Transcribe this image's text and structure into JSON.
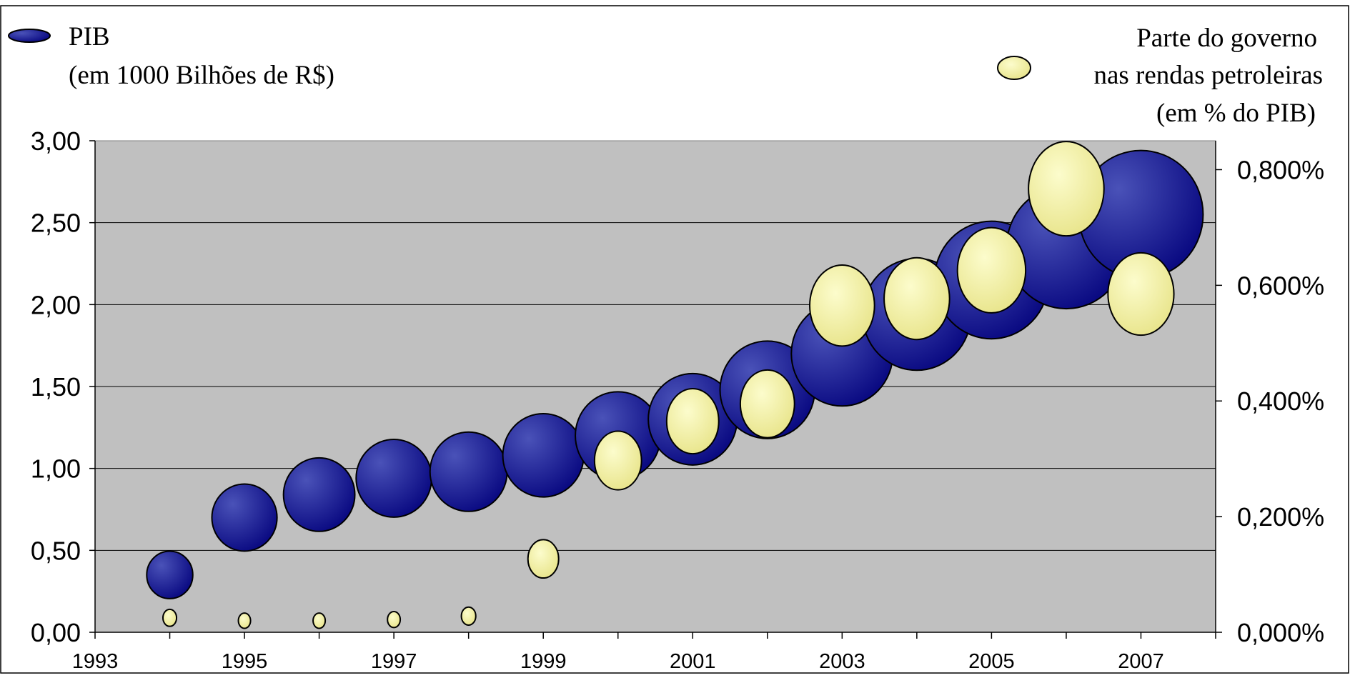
{
  "legend": {
    "left": {
      "line1": "PIB",
      "line2": "(em 1000 Bilhões de R$)"
    },
    "right": {
      "line1": "Parte do governo",
      "line2": "nas rendas petroleiras",
      "line3": "(em % do PIB)"
    }
  },
  "colors": {
    "plot_background": "#c0c0c0",
    "gdp_bubble": "#0a0a82",
    "gdp_highlight": "#4a52b8",
    "share_bubble": "#e8e48a",
    "share_highlight": "#fcfccc",
    "gridline": "#000000"
  },
  "chart_data": {
    "type": "bubble",
    "x_ticks": [
      "1993",
      "1995",
      "1997",
      "1999",
      "2001",
      "2003",
      "2005",
      "2007"
    ],
    "xlim": [
      1993,
      2008
    ],
    "y_left_ticks": [
      "3,00",
      "2,50",
      "2,00",
      "1,50",
      "1,00",
      "0,50",
      "0,00"
    ],
    "y_left_lim": [
      0,
      3
    ],
    "y_right_ticks": [
      "0,800%",
      "0,600%",
      "0,400%",
      "0,200%",
      "0,000%"
    ],
    "y_right_lim": [
      0,
      0.0085
    ],
    "grid": true,
    "series": [
      {
        "name": "PIB (em 1000 Bilhões de R$)",
        "axis": "left",
        "x": [
          1994,
          1995,
          1996,
          1997,
          1998,
          1999,
          2000,
          2001,
          2002,
          2003,
          2004,
          2005,
          2006,
          2007
        ],
        "y": [
          0.35,
          0.7,
          0.84,
          0.94,
          0.98,
          1.08,
          1.2,
          1.3,
          1.48,
          1.7,
          1.94,
          2.15,
          2.35,
          2.55
        ],
        "size": [
          0.35,
          0.7,
          0.84,
          0.94,
          0.98,
          1.08,
          1.2,
          1.3,
          1.48,
          1.7,
          1.94,
          2.15,
          2.35,
          2.55
        ]
      },
      {
        "name": "Parte do governo nas rendas petroleiras (em % do PIB)",
        "axis": "right",
        "x": [
          1994,
          1995,
          1996,
          1997,
          1998,
          1999,
          2000,
          2001,
          2002,
          2003,
          2004,
          2005,
          2006,
          2007
        ],
        "y": [
          0.00025,
          0.0002,
          0.0002,
          0.00022,
          0.00028,
          0.00127,
          0.00297,
          0.00365,
          0.00395,
          0.00565,
          0.00577,
          0.00626,
          0.00767,
          0.00585
        ],
        "size": [
          0.00025,
          0.0002,
          0.0002,
          0.00022,
          0.00028,
          0.00127,
          0.00297,
          0.00365,
          0.00395,
          0.00565,
          0.00577,
          0.00626,
          0.00767,
          0.00585
        ]
      }
    ]
  }
}
